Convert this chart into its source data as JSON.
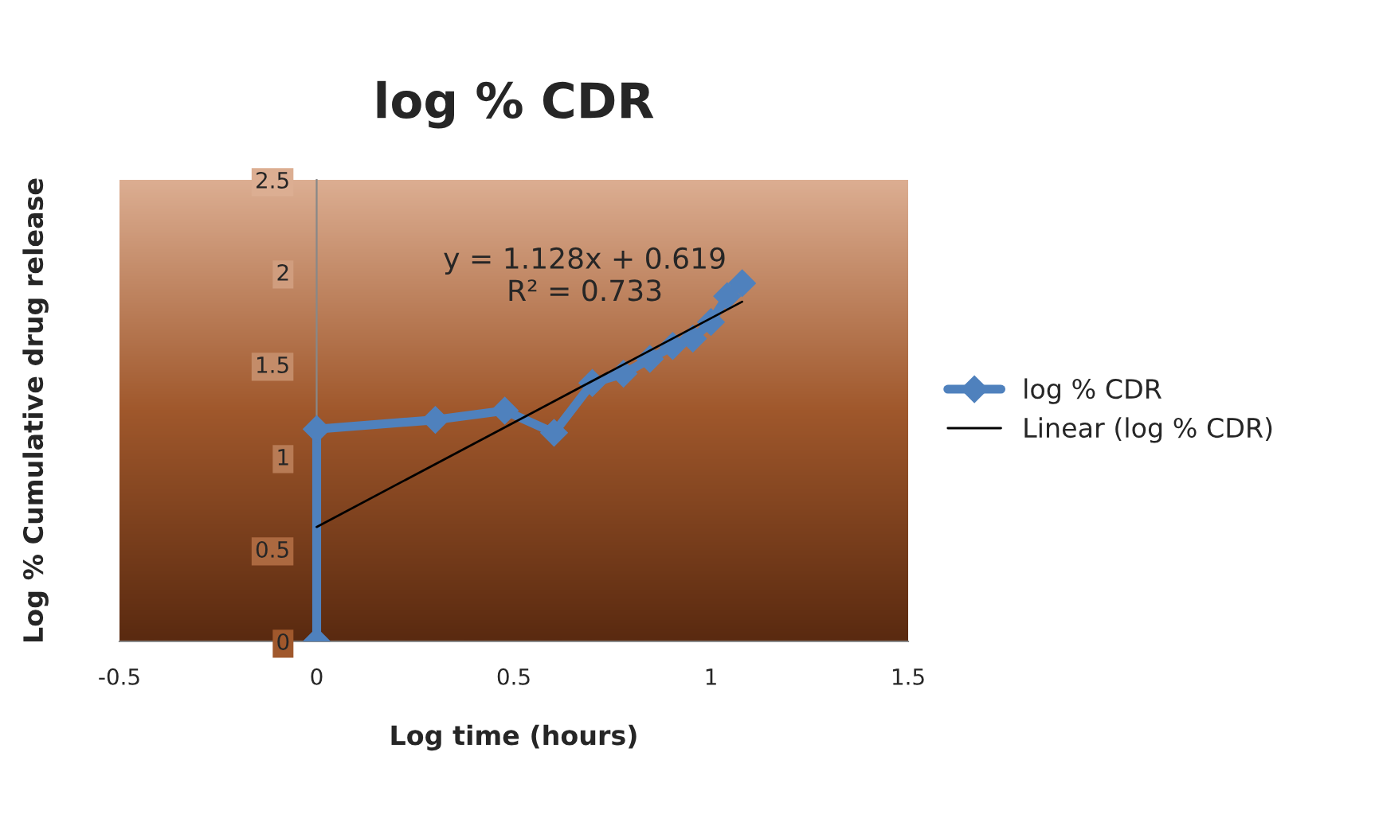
{
  "chart_data": {
    "type": "line",
    "title": "log % CDR",
    "xlabel": "Log time (hours)",
    "ylabel": "Log % Cumulative drug release",
    "xlim": [
      -0.5,
      1.5
    ],
    "xticks": [
      -0.5,
      0,
      0.5,
      1,
      1.5
    ],
    "ylim": [
      0,
      2.5
    ],
    "yticks": [
      0,
      0.5,
      1,
      1.5,
      2,
      2.5
    ],
    "grid": false,
    "legend": "right",
    "marker": "diamond",
    "x": [
      0,
      0,
      0.301,
      0.477,
      0.602,
      0.699,
      0.778,
      0.845,
      0.903,
      0.954,
      1.0,
      1.041,
      1.079
    ],
    "series": [
      {
        "name": "log % CDR",
        "color": "#4f81bd",
        "values": [
          0,
          1.15,
          1.2,
          1.25,
          1.13,
          1.4,
          1.45,
          1.53,
          1.6,
          1.64,
          1.73,
          1.87,
          1.94
        ]
      },
      {
        "name": "Linear (log % CDR)",
        "type": "line",
        "marker": "none",
        "color": "#000000",
        "x": [
          0,
          1.079
        ],
        "values": [
          0.62,
          1.84
        ]
      }
    ],
    "annotations": [
      "y = 1.128x + 0.619\nR² = 0.733"
    ]
  }
}
